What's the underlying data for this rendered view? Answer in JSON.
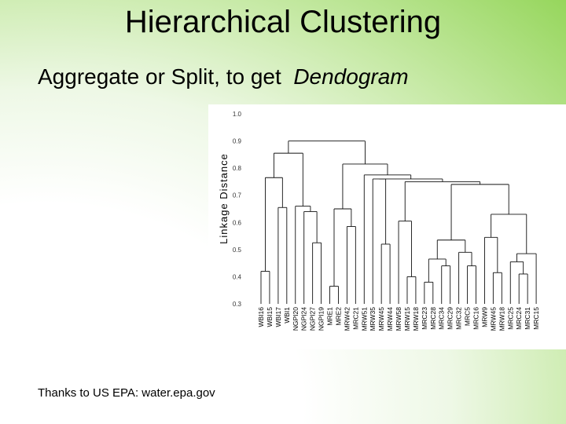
{
  "slide": {
    "title": "Hierarchical Clustering",
    "subtitle_prefix": "Aggregate or Split, to get",
    "subtitle_emphasis": "Dendogram",
    "credit": "Thanks to US EPA:  water.epa.gov"
  },
  "chart_data": {
    "type": "dendrogram",
    "ylabel": "Linkage Distance",
    "ylim": [
      0.3,
      1.0
    ],
    "yticks": [
      "1.0",
      "0.9",
      "0.8",
      "0.7",
      "0.6",
      "0.5",
      "0.4",
      "0.3"
    ],
    "leaves": [
      "WBI16",
      "WBI15",
      "WBI17",
      "WBI1",
      "NGPI20",
      "NGPI24",
      "NGPI27",
      "NGPI19",
      "MRE1",
      "MRE2",
      "MRW42",
      "MRC21",
      "MRW51",
      "MRW35",
      "MRW45",
      "MRW44",
      "MRW58",
      "MRW15",
      "MRW18",
      "MRC23",
      "MRC28",
      "MRC34",
      "MRC29",
      "MRC32",
      "MRC5",
      "MRC16",
      "MRW9",
      "MRW45",
      "MRW18",
      "MRC25",
      "MRC24",
      "MRC31",
      "MRC15"
    ],
    "merges": [
      {
        "a": [
          "L",
          0
        ],
        "b": [
          "L",
          1
        ],
        "h": 0.42
      },
      {
        "a": [
          "L",
          2
        ],
        "b": [
          "L",
          3
        ],
        "h": 0.655
      },
      {
        "a": [
          "N",
          0
        ],
        "b": [
          "N",
          1
        ],
        "h": 0.765
      },
      {
        "a": [
          "L",
          6
        ],
        "b": [
          "L",
          7
        ],
        "h": 0.525
      },
      {
        "a": [
          "L",
          5
        ],
        "b": [
          "N",
          3
        ],
        "h": 0.64
      },
      {
        "a": [
          "L",
          4
        ],
        "b": [
          "N",
          4
        ],
        "h": 0.66
      },
      {
        "a": [
          "N",
          2
        ],
        "b": [
          "N",
          5
        ],
        "h": 0.855
      },
      {
        "a": [
          "L",
          8
        ],
        "b": [
          "L",
          9
        ],
        "h": 0.365
      },
      {
        "a": [
          "L",
          10
        ],
        "b": [
          "L",
          11
        ],
        "h": 0.585
      },
      {
        "a": [
          "N",
          7
        ],
        "b": [
          "N",
          8
        ],
        "h": 0.65
      },
      {
        "a": [
          "L",
          14
        ],
        "b": [
          "L",
          15
        ],
        "h": 0.52
      },
      {
        "a": [
          "L",
          13
        ],
        "b": [
          "N",
          10
        ],
        "h": 0.76
      },
      {
        "a": [
          "L",
          17
        ],
        "b": [
          "L",
          18
        ],
        "h": 0.4
      },
      {
        "a": [
          "L",
          16
        ],
        "b": [
          "N",
          12
        ],
        "h": 0.605
      },
      {
        "a": [
          "L",
          19
        ],
        "b": [
          "L",
          20
        ],
        "h": 0.38
      },
      {
        "a": [
          "L",
          21
        ],
        "b": [
          "L",
          22
        ],
        "h": 0.44
      },
      {
        "a": [
          "N",
          14
        ],
        "b": [
          "N",
          15
        ],
        "h": 0.465
      },
      {
        "a": [
          "L",
          24
        ],
        "b": [
          "L",
          25
        ],
        "h": 0.44
      },
      {
        "a": [
          "L",
          23
        ],
        "b": [
          "N",
          17
        ],
        "h": 0.49
      },
      {
        "a": [
          "N",
          16
        ],
        "b": [
          "N",
          18
        ],
        "h": 0.535
      },
      {
        "a": [
          "L",
          27
        ],
        "b": [
          "L",
          28
        ],
        "h": 0.415
      },
      {
        "a": [
          "L",
          26
        ],
        "b": [
          "N",
          20
        ],
        "h": 0.545
      },
      {
        "a": [
          "L",
          30
        ],
        "b": [
          "L",
          31
        ],
        "h": 0.41
      },
      {
        "a": [
          "L",
          29
        ],
        "b": [
          "N",
          22
        ],
        "h": 0.455
      },
      {
        "a": [
          "N",
          23
        ],
        "b": [
          "L",
          32
        ],
        "h": 0.485
      },
      {
        "a": [
          "N",
          21
        ],
        "b": [
          "N",
          24
        ],
        "h": 0.63
      },
      {
        "a": [
          "N",
          19
        ],
        "b": [
          "N",
          25
        ],
        "h": 0.74
      },
      {
        "a": [
          "N",
          13
        ],
        "b": [
          "N",
          26
        ],
        "h": 0.75
      },
      {
        "a": [
          "N",
          11
        ],
        "b": [
          "N",
          27
        ],
        "h": 0.76
      },
      {
        "a": [
          "L",
          12
        ],
        "b": [
          "N",
          28
        ],
        "h": 0.775
      },
      {
        "a": [
          "N",
          9
        ],
        "b": [
          "N",
          29
        ],
        "h": 0.815
      },
      {
        "a": [
          "N",
          6
        ],
        "b": [
          "N",
          30
        ],
        "h": 0.9
      }
    ]
  }
}
